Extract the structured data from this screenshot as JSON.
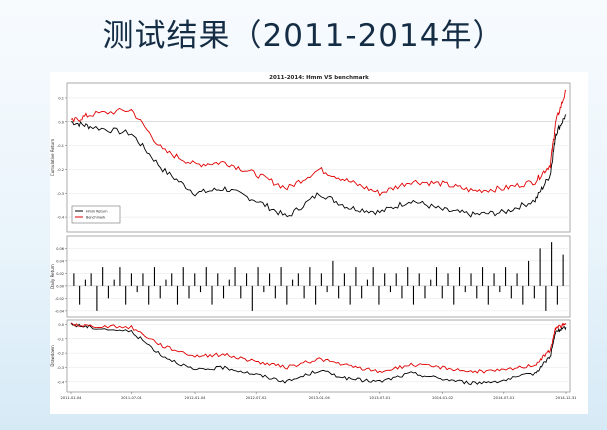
{
  "slide": {
    "title": "测试结果（2011-2014年）"
  },
  "chart_data": [
    {
      "panel": "cumulative-return",
      "type": "line",
      "title": "2011-2014: Hmm VS benchmark",
      "ylabel": "Cumulative Return",
      "ylim": [
        -0.45,
        0.15
      ],
      "yticks": [
        "0.1",
        "0.0",
        "-0.1",
        "-0.2",
        "-0.3",
        "-0.4"
      ],
      "legend": {
        "placement": "bottom-left",
        "entries": [
          "Hmm Return",
          "Benchmark"
        ]
      },
      "x": [
        "2011-01-04",
        "2011-03-01",
        "2011-07-01",
        "2011-10-01",
        "2012-01-04",
        "2012-04-01",
        "2012-07-02",
        "2012-10-01",
        "2013-01-04",
        "2013-04-01",
        "2013-07-01",
        "2013-10-01",
        "2014-01-02",
        "2014-04-01",
        "2014-07-01",
        "2014-10-01",
        "2014-11-15",
        "2014-12-01",
        "2014-12-31"
      ],
      "series": [
        {
          "name": "Hmm Return",
          "color": "#000000",
          "values": [
            0.0,
            -0.02,
            -0.05,
            -0.2,
            -0.3,
            -0.28,
            -0.33,
            -0.4,
            -0.3,
            -0.36,
            -0.38,
            -0.33,
            -0.37,
            -0.39,
            -0.38,
            -0.33,
            -0.22,
            -0.05,
            0.03
          ]
        },
        {
          "name": "Benchmark",
          "color": "#e00000",
          "values": [
            0.0,
            0.03,
            0.05,
            -0.12,
            -0.18,
            -0.17,
            -0.22,
            -0.28,
            -0.2,
            -0.25,
            -0.3,
            -0.25,
            -0.26,
            -0.29,
            -0.28,
            -0.25,
            -0.18,
            0.0,
            0.13
          ]
        }
      ]
    },
    {
      "panel": "daily-return",
      "type": "bar",
      "ylabel": "Daily Return",
      "ylim": [
        -0.045,
        0.075
      ],
      "yticks": [
        "0.06",
        "0.04",
        "0.02",
        "0.00",
        "-0.02",
        "-0.04"
      ],
      "values": [
        0.02,
        -0.03,
        0.01,
        0.02,
        -0.04,
        0.03,
        -0.02,
        0.01,
        0.03,
        -0.03,
        0.02,
        -0.01,
        0.02,
        -0.03,
        0.03,
        -0.02,
        0.01,
        0.02,
        -0.03,
        0.03,
        -0.02,
        0.02,
        -0.01,
        0.03,
        -0.03,
        0.02,
        -0.02,
        0.01,
        0.03,
        -0.02,
        0.02,
        -0.04,
        0.03,
        -0.01,
        0.02,
        -0.02,
        0.03,
        -0.03,
        0.01,
        0.02,
        -0.02,
        0.03,
        -0.03,
        0.02,
        -0.01,
        0.04,
        -0.02,
        0.02,
        -0.03,
        0.03,
        -0.02,
        0.01,
        0.03,
        -0.03,
        0.02,
        -0.01,
        0.02,
        -0.02,
        0.03,
        -0.03,
        0.02,
        -0.02,
        0.01,
        0.03,
        -0.02,
        0.02,
        -0.03,
        0.03,
        -0.01,
        0.02,
        -0.02,
        0.03,
        -0.03,
        0.02,
        -0.01,
        0.03,
        -0.02,
        0.02,
        -0.03,
        0.04,
        -0.02,
        0.06,
        -0.04,
        0.07,
        -0.03,
        0.05
      ]
    },
    {
      "panel": "drawdown",
      "type": "line",
      "ylabel": "Drawdown",
      "ylim": [
        -0.45,
        0.01
      ],
      "yticks": [
        "0.0",
        "-0.1",
        "-0.2",
        "-0.3",
        "-0.4"
      ],
      "xticks": [
        "2011-01-04",
        "2011-07-01",
        "2012-01-04",
        "2012-07-02",
        "2013-01-04",
        "2013-07-01",
        "2014-01-02",
        "2014-07-01",
        "2014-12-31"
      ],
      "x": [
        "2011-01-04",
        "2011-03-01",
        "2011-07-01",
        "2011-10-01",
        "2012-01-04",
        "2012-04-01",
        "2012-07-02",
        "2012-10-01",
        "2013-01-04",
        "2013-04-01",
        "2013-07-01",
        "2013-10-01",
        "2014-01-02",
        "2014-04-01",
        "2014-07-01",
        "2014-10-01",
        "2014-11-15",
        "2014-12-01",
        "2014-12-31"
      ],
      "series": [
        {
          "name": "Hmm Return",
          "color": "#000000",
          "values": [
            0.0,
            -0.02,
            -0.05,
            -0.22,
            -0.32,
            -0.3,
            -0.35,
            -0.4,
            -0.32,
            -0.38,
            -0.4,
            -0.34,
            -0.38,
            -0.41,
            -0.39,
            -0.34,
            -0.22,
            -0.05,
            -0.02
          ]
        },
        {
          "name": "Benchmark",
          "color": "#e00000",
          "values": [
            0.0,
            -0.01,
            -0.02,
            -0.15,
            -0.22,
            -0.21,
            -0.26,
            -0.3,
            -0.24,
            -0.29,
            -0.33,
            -0.28,
            -0.3,
            -0.33,
            -0.32,
            -0.28,
            -0.18,
            -0.02,
            0.0
          ]
        }
      ]
    }
  ]
}
